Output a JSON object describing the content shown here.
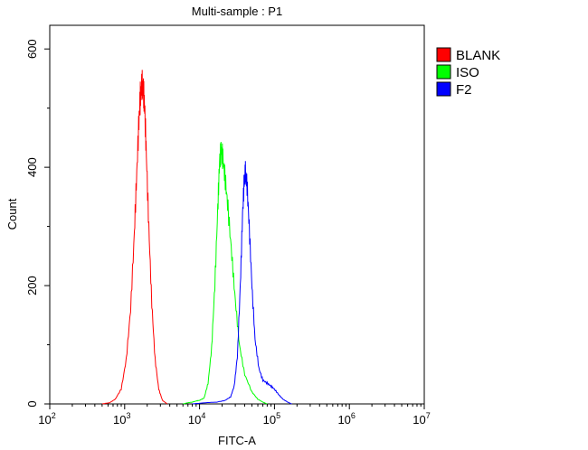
{
  "chart_data": {
    "type": "line",
    "title": "Multi-sample : P1",
    "xlabel": "FITC-A",
    "ylabel": "Count",
    "x_scale": "log",
    "xlim": [
      100,
      10000000
    ],
    "ylim": [
      0,
      640
    ],
    "x_ticks": [
      {
        "value": 100,
        "base": "10",
        "exp": "2"
      },
      {
        "value": 1000,
        "base": "10",
        "exp": "3"
      },
      {
        "value": 10000,
        "base": "10",
        "exp": "4"
      },
      {
        "value": 100000,
        "base": "10",
        "exp": "5"
      },
      {
        "value": 1000000,
        "base": "10",
        "exp": "6"
      },
      {
        "value": 10000000,
        "base": "10",
        "exp": "7"
      }
    ],
    "y_ticks": [
      0,
      200,
      400,
      600
    ],
    "grid": false,
    "legend_position": "top-right",
    "series": [
      {
        "name": "BLANK",
        "color": "#ff0000",
        "x": [
          500,
          630,
          750,
          900,
          1050,
          1200,
          1350,
          1450,
          1550,
          1620,
          1700,
          1780,
          1850,
          1950,
          2100,
          2300,
          2550,
          2850,
          3200,
          3700
        ],
        "y": [
          0,
          2,
          8,
          25,
          75,
          160,
          290,
          390,
          480,
          520,
          540,
          530,
          500,
          420,
          300,
          170,
          75,
          25,
          6,
          0
        ]
      },
      {
        "name": "ISO",
        "color": "#00ff00",
        "x": [
          6000,
          7000,
          8000,
          9000,
          10000,
          11500,
          13000,
          14500,
          16000,
          17500,
          18500,
          19500,
          20500,
          22000,
          24000,
          27000,
          30000,
          34000,
          40000,
          50000,
          60000,
          70000,
          80000
        ],
        "y": [
          0,
          2,
          3,
          5,
          6,
          10,
          35,
          95,
          200,
          330,
          410,
          430,
          415,
          380,
          330,
          250,
          175,
          100,
          50,
          20,
          8,
          3,
          0
        ]
      },
      {
        "name": "F2",
        "color": "#0000ff",
        "x": [
          8000,
          12000,
          17000,
          22000,
          26000,
          29000,
          32000,
          35000,
          37500,
          39500,
          41000,
          43000,
          46000,
          50000,
          55000,
          62000,
          70000,
          80000,
          90000,
          100000,
          115000,
          130000,
          150000,
          170000
        ],
        "y": [
          0,
          2,
          3,
          6,
          12,
          30,
          80,
          200,
          320,
          380,
          392,
          370,
          300,
          200,
          110,
          60,
          40,
          35,
          30,
          25,
          15,
          8,
          3,
          0
        ]
      }
    ]
  }
}
